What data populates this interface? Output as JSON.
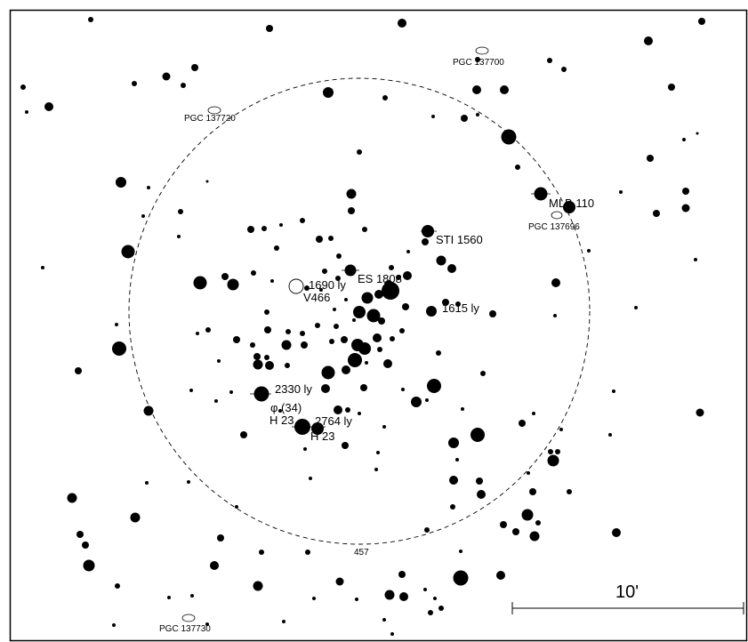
{
  "map": {
    "colors": {
      "ink": "#000000",
      "background": "#ffffff"
    },
    "circle_label": "457",
    "scale_label": "10'",
    "object_labels": [
      "ES 1808",
      "1690 ly",
      "V466",
      "1615 ly",
      "STI 1560",
      "MLB 110",
      "2330 ly",
      "φ (34)",
      "H 23",
      "2764 ly",
      "H 23"
    ],
    "galaxy_labels": [
      "PGC 137720",
      "PGC 137700",
      "PGC 137696",
      "PGC 137730"
    ]
  }
}
